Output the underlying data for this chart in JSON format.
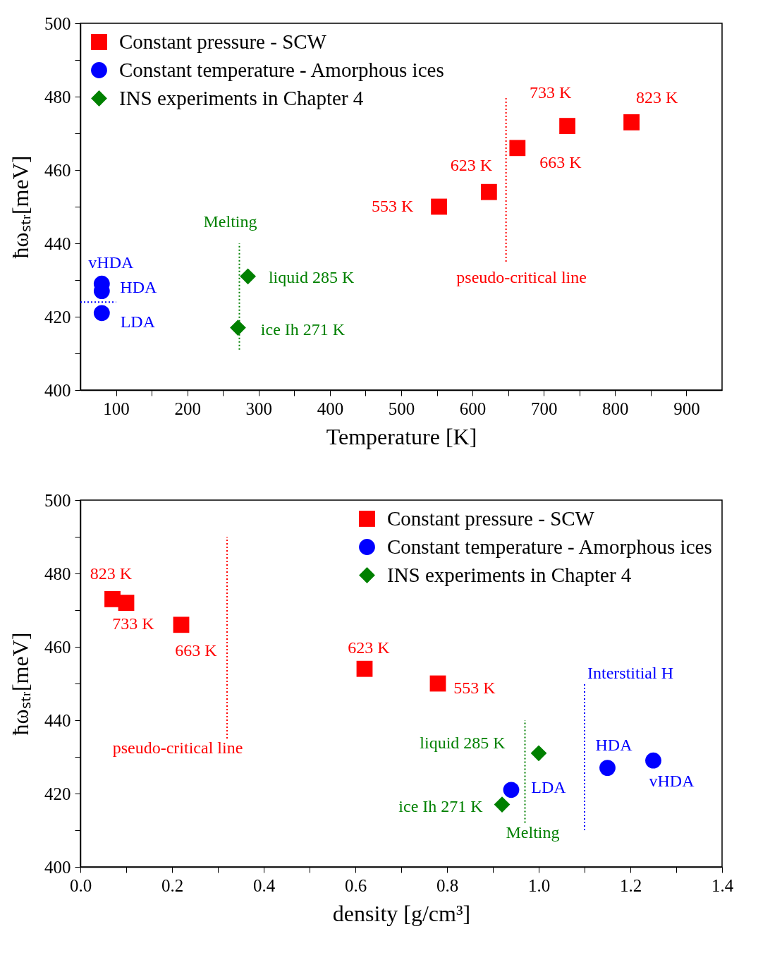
{
  "chart_data": [
    {
      "type": "scatter",
      "xlabel": "Temperature [K]",
      "ylabel": "ħωₛₜᵣ[meV]",
      "xlim": [
        50,
        950
      ],
      "ylim": [
        400,
        500
      ],
      "xticks": [
        100,
        200,
        300,
        400,
        500,
        600,
        700,
        800,
        900,
        {
          "value": 150,
          "label": null
        },
        {
          "value": 250,
          "label": null
        },
        {
          "value": 350,
          "label": null
        },
        {
          "value": 450,
          "label": null
        },
        {
          "value": 550,
          "label": null
        },
        {
          "value": 650,
          "label": null
        },
        {
          "value": 750,
          "label": null
        },
        {
          "value": 850,
          "label": null
        }
      ],
      "yticks": [
        400,
        420,
        440,
        460,
        480,
        500,
        {
          "value": 410,
          "label": null
        },
        {
          "value": 430,
          "label": null
        },
        {
          "value": 450,
          "label": null
        },
        {
          "value": 470,
          "label": null
        },
        {
          "value": 490,
          "label": null
        }
      ],
      "legend": "top left",
      "series": [
        {
          "name": "Constant pressure - SCW",
          "color": "#ff0000",
          "marker": "square",
          "x": [
            553,
            623,
            663,
            733,
            823
          ],
          "values": [
            450,
            454,
            466,
            472,
            473
          ]
        },
        {
          "name": "Constant temperature - Amorphous ices",
          "color": "#0000ff",
          "marker": "circle",
          "x": [
            80,
            80,
            80
          ],
          "values": [
            429,
            427,
            421
          ]
        },
        {
          "name": "INS experiments in Chapter 4",
          "color": "#008000",
          "marker": "diamond",
          "x": [
            285,
            271
          ],
          "values": [
            431,
            417
          ]
        },
        {
          "type": "line",
          "name": "pseudo-critical line",
          "color": "#ff0000",
          "line_style": "dotted",
          "marker": "none",
          "x": [
            647,
            647
          ],
          "values": [
            435,
            480
          ]
        },
        {
          "type": "line",
          "name": "Melting",
          "color": "#008000",
          "line_style": "dotted",
          "marker": "none",
          "x": [
            273,
            273
          ],
          "values": [
            411,
            440
          ]
        },
        {
          "type": "line",
          "color": "#0000ff",
          "line_style": "dotted",
          "marker": "none",
          "x": [
            50,
            100
          ],
          "values": [
            424,
            424
          ]
        }
      ],
      "annotations": [
        {
          "text": "553 K",
          "x": 553,
          "y": 450
        },
        {
          "text": "623 K",
          "x": 623,
          "y": 454
        },
        {
          "text": "663 K",
          "x": 663,
          "y": 466
        },
        {
          "text": "733 K",
          "x": 733,
          "y": 472
        },
        {
          "text": "823 K",
          "x": 823,
          "y": 473
        },
        {
          "text": "vHDA",
          "x": 80,
          "y": 429
        },
        {
          "text": "HDA",
          "x": 80,
          "y": 427
        },
        {
          "text": "LDA",
          "x": 80,
          "y": 421
        },
        {
          "text": "liquid 285 K",
          "x": 285,
          "y": 431
        },
        {
          "text": "ice Ih 271 K",
          "x": 271,
          "y": 417
        }
      ]
    },
    {
      "type": "scatter",
      "xlabel": "density [g/cm³]",
      "ylabel": "ħωₛₜᵣ[meV]",
      "xlim": [
        0,
        1.4
      ],
      "ylim": [
        400,
        500
      ],
      "xticks": [
        {
          "value": 0,
          "label": "0.0"
        },
        0.2,
        0.4,
        0.6,
        0.8,
        {
          "value": 1,
          "label": "1.0"
        },
        1.2,
        1.4,
        {
          "value": 0.1,
          "label": null
        },
        {
          "value": 0.3,
          "label": null
        },
        {
          "value": 0.5,
          "label": null
        },
        {
          "value": 0.7,
          "label": null
        },
        {
          "value": 0.9,
          "label": null
        },
        {
          "value": 1.1,
          "label": null
        },
        {
          "value": 1.3,
          "label": null
        }
      ],
      "yticks": [
        400,
        420,
        440,
        460,
        480,
        500,
        {
          "value": 410,
          "label": null
        },
        {
          "value": 430,
          "label": null
        },
        {
          "value": 450,
          "label": null
        },
        {
          "value": 470,
          "label": null
        },
        {
          "value": 490,
          "label": null
        }
      ],
      "legend": "top right",
      "series": [
        {
          "name": "Constant pressure - SCW",
          "color": "#ff0000",
          "marker": "square",
          "x": [
            0.07,
            0.1,
            0.22,
            0.62,
            0.78
          ],
          "values": [
            473,
            472,
            466,
            454,
            450
          ]
        },
        {
          "name": "Constant temperature - Amorphous ices",
          "color": "#0000ff",
          "marker": "circle",
          "x": [
            0.94,
            1.15,
            1.25
          ],
          "values": [
            421,
            427,
            429
          ]
        },
        {
          "name": "INS experiments in Chapter 4",
          "color": "#008000",
          "marker": "diamond",
          "x": [
            1.0,
            0.92
          ],
          "values": [
            431,
            417
          ]
        },
        {
          "type": "line",
          "name": "pseudo-critical line",
          "color": "#ff0000",
          "line_style": "dotted",
          "marker": "none",
          "x": [
            0.32,
            0.32
          ],
          "values": [
            435,
            490
          ]
        },
        {
          "type": "line",
          "name": "Melting",
          "color": "#008000",
          "line_style": "dotted",
          "marker": "none",
          "x": [
            0.97,
            0.97
          ],
          "values": [
            412,
            440
          ]
        },
        {
          "type": "line",
          "name": "Interstitial H",
          "color": "#0000ff",
          "line_style": "dotted",
          "marker": "none",
          "x": [
            1.1,
            1.1
          ],
          "values": [
            410,
            450
          ]
        }
      ],
      "annotations": [
        {
          "text": "823 K",
          "x": 0.07,
          "y": 473
        },
        {
          "text": "733 K",
          "x": 0.1,
          "y": 472
        },
        {
          "text": "663 K",
          "x": 0.22,
          "y": 466
        },
        {
          "text": "623 K",
          "x": 0.62,
          "y": 454
        },
        {
          "text": "553 K",
          "x": 0.78,
          "y": 450
        },
        {
          "text": "LDA",
          "x": 0.94,
          "y": 421
        },
        {
          "text": "HDA",
          "x": 1.15,
          "y": 427
        },
        {
          "text": "vHDA",
          "x": 1.25,
          "y": 429
        },
        {
          "text": "liquid 285 K",
          "x": 1.0,
          "y": 431
        },
        {
          "text": "ice Ih 271 K",
          "x": 0.92,
          "y": 417
        }
      ]
    }
  ]
}
